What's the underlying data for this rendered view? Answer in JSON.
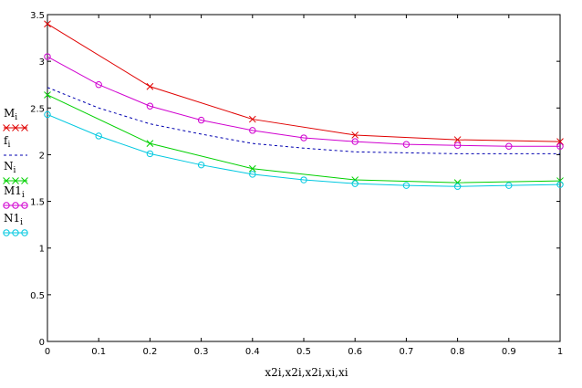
{
  "chart_data": {
    "type": "line",
    "title": "",
    "xlabel": "x2i,x2i,x2i,xi,xi",
    "ylabel": "",
    "xlim": [
      0,
      1
    ],
    "ylim": [
      0,
      3.5
    ],
    "x_ticks": [
      "0",
      "0.1",
      "0.2",
      "0.3",
      "0.4",
      "0.5",
      "0.6",
      "0.7",
      "0.8",
      "0.9",
      "1"
    ],
    "y_ticks": [
      "0",
      "0.5",
      "1",
      "1.5",
      "2",
      "2.5",
      "3",
      "3.5"
    ],
    "grid": false,
    "legend_position": "left",
    "series": [
      {
        "name": "Mi",
        "color": "#e00000",
        "style": "solid",
        "marker": "x",
        "x": [
          0,
          0.2,
          0.4,
          0.6,
          0.8,
          1.0
        ],
        "y": [
          3.4,
          2.73,
          2.38,
          2.21,
          2.16,
          2.14
        ]
      },
      {
        "name": "fi",
        "color": "#0000b0",
        "style": "dashed",
        "marker": "none",
        "x": [
          0,
          0.1,
          0.2,
          0.3,
          0.4,
          0.5,
          0.6,
          0.7,
          0.8,
          0.9,
          1.0
        ],
        "y": [
          2.72,
          2.5,
          2.33,
          2.22,
          2.12,
          2.07,
          2.03,
          2.02,
          2.01,
          2.01,
          2.01
        ]
      },
      {
        "name": "Ni",
        "color": "#00d000",
        "style": "solid",
        "marker": "x",
        "x": [
          0,
          0.2,
          0.4,
          0.6,
          0.8,
          1.0
        ],
        "y": [
          2.64,
          2.12,
          1.85,
          1.73,
          1.7,
          1.72
        ]
      },
      {
        "name": "M1i",
        "color": "#d000d0",
        "style": "solid",
        "marker": "o",
        "x": [
          0,
          0.1,
          0.2,
          0.3,
          0.4,
          0.5,
          0.6,
          0.7,
          0.8,
          0.9,
          1.0
        ],
        "y": [
          3.05,
          2.75,
          2.52,
          2.37,
          2.26,
          2.18,
          2.14,
          2.11,
          2.1,
          2.09,
          2.09
        ]
      },
      {
        "name": "N1i",
        "color": "#00c8e0",
        "style": "solid",
        "marker": "o",
        "x": [
          0,
          0.1,
          0.2,
          0.3,
          0.4,
          0.5,
          0.6,
          0.7,
          0.8,
          0.9,
          1.0
        ],
        "y": [
          2.43,
          2.2,
          2.01,
          1.89,
          1.79,
          1.73,
          1.69,
          1.67,
          1.66,
          1.67,
          1.68
        ]
      }
    ]
  }
}
